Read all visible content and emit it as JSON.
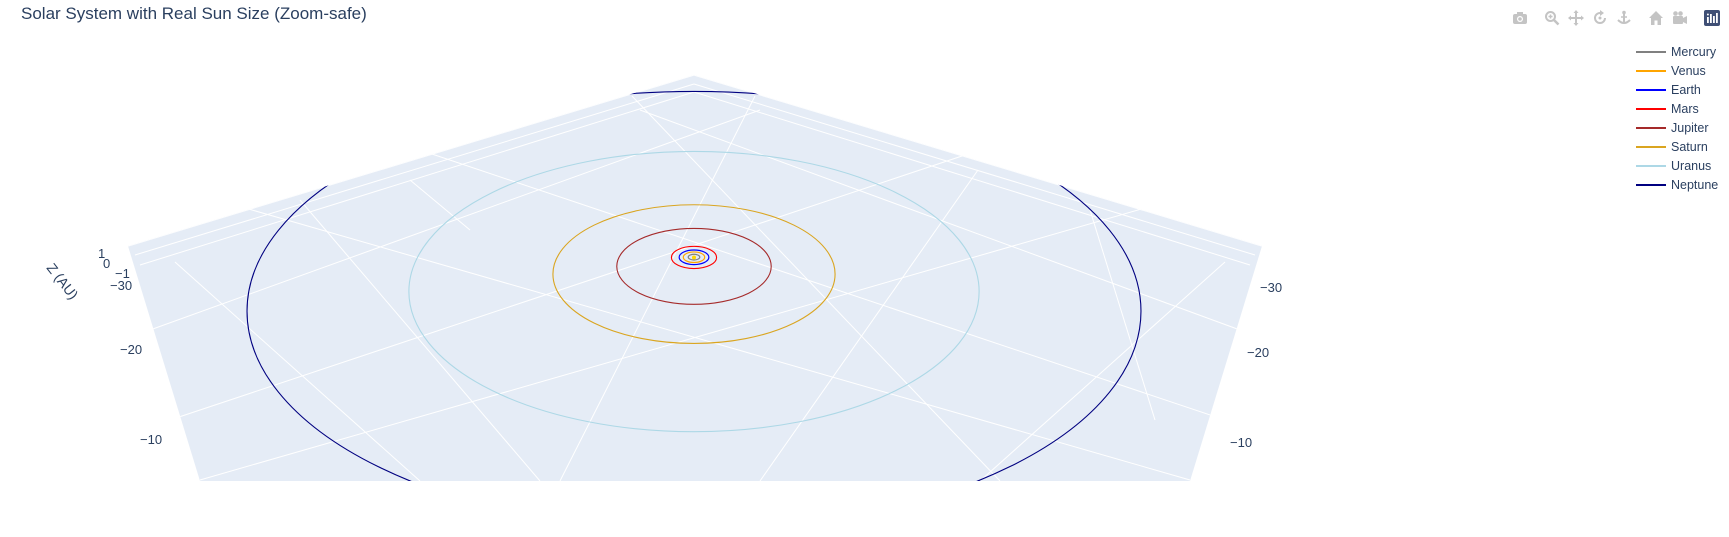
{
  "chart_data": {
    "type": "line",
    "subtype": "3d-orbit-plot",
    "title": "Solar System with Real Sun Size (Zoom-safe)",
    "zlabel": "Z (AU)",
    "z_ticks": [
      "1",
      "0",
      "-1"
    ],
    "x_ticks": [
      "-30",
      "-20",
      "-10"
    ],
    "y_ticks": [
      "-30",
      "-20",
      "-10"
    ],
    "xlim": [
      -31,
      31
    ],
    "ylim": [
      -31,
      31
    ],
    "legend_position": "top-right",
    "series": [
      {
        "name": "Mercury",
        "semi_major_axis_au": 0.39,
        "color": "#808080"
      },
      {
        "name": "Venus",
        "semi_major_axis_au": 0.72,
        "color": "#FFA500"
      },
      {
        "name": "Earth",
        "semi_major_axis_au": 1.0,
        "color": "#0000FF"
      },
      {
        "name": "Mars",
        "semi_major_axis_au": 1.52,
        "color": "#FF0000"
      },
      {
        "name": "Jupiter",
        "semi_major_axis_au": 5.2,
        "color": "#A52A2A"
      },
      {
        "name": "Saturn",
        "semi_major_axis_au": 9.5,
        "color": "#DAA520"
      },
      {
        "name": "Uranus",
        "semi_major_axis_au": 19.2,
        "color": "#ADD8E6"
      },
      {
        "name": "Neptune",
        "semi_major_axis_au": 30.1,
        "color": "#000080"
      }
    ],
    "sun": {
      "name": "Sun",
      "color": "#FFD700"
    }
  },
  "modebar": {
    "buttons": [
      {
        "icon": "camera-icon",
        "label": "Download plot as a png"
      },
      {
        "icon": "zoom-icon",
        "label": "Zoom"
      },
      {
        "icon": "pan-icon",
        "label": "Pan"
      },
      {
        "icon": "orbit-rotation-icon",
        "label": "Orbital rotation"
      },
      {
        "icon": "turntable-icon",
        "label": "Turntable rotation"
      },
      {
        "icon": "home-icon",
        "label": "Reset camera to default"
      },
      {
        "icon": "camera-view-icon",
        "label": "Reset camera to last save"
      },
      {
        "icon": "plotly-logo-icon",
        "label": "Produced with Plotly"
      }
    ]
  },
  "colors": {
    "scene_bg": "#E5ECF6",
    "grid": "#FFFFFF",
    "text": "#2a3f5f"
  }
}
